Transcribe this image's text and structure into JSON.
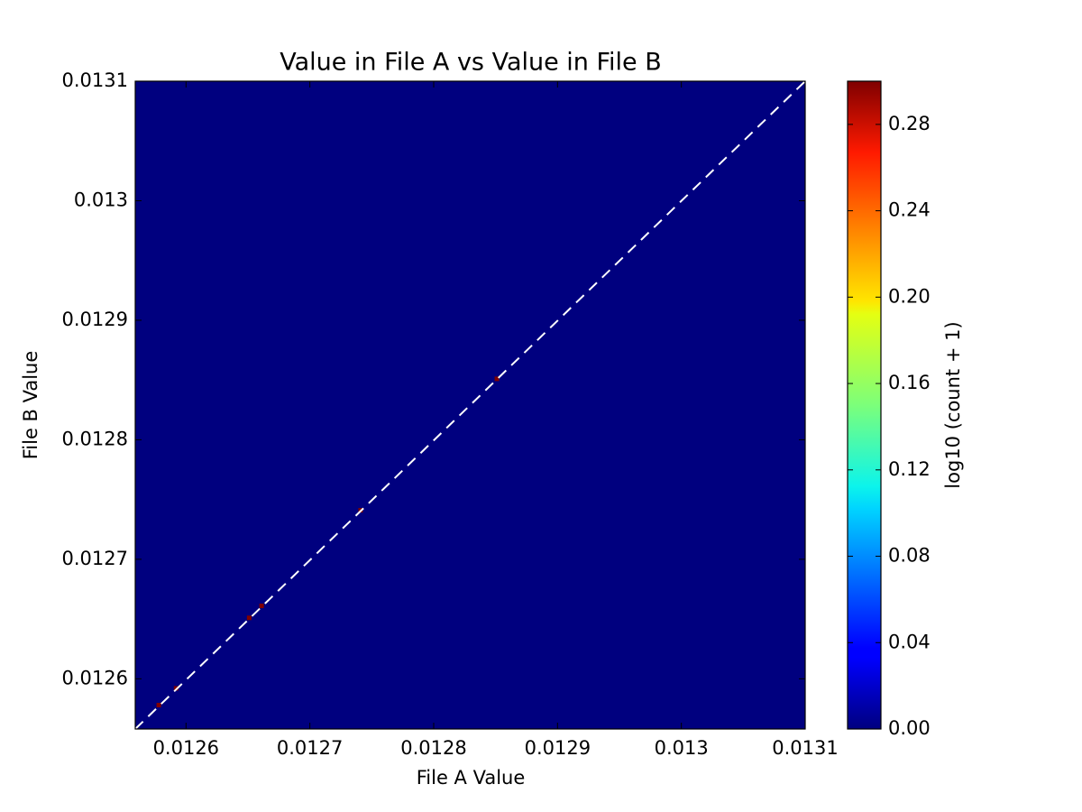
{
  "chart_data": {
    "type": "hist2d",
    "title": "Value in File A vs Value in File B",
    "x_label": "File A Value",
    "y_label": "File B Value",
    "colorbar_label": "log10 (count + 1)",
    "colormap": "jet",
    "x": [
      0.012578,
      0.012592,
      0.012651,
      0.012661,
      0.012741,
      0.012851
    ],
    "y": [
      0.012578,
      0.012592,
      0.012651,
      0.012661,
      0.012741,
      0.012851
    ],
    "values": [
      0.3,
      0.3,
      0.3,
      0.3,
      0.3,
      0.3
    ],
    "xlim": [
      0.012559,
      0.0131
    ],
    "ylim": [
      0.012558,
      0.0131
    ],
    "xticks": [
      0.0126,
      0.0127,
      0.0128,
      0.0129,
      0.013,
      0.0131
    ],
    "yticks": [
      0.0126,
      0.0127,
      0.0128,
      0.0129,
      0.013,
      0.0131
    ],
    "clim": [
      0,
      0.3
    ],
    "cticks": [
      {
        "value": 0,
        "label": "0.00"
      },
      {
        "value": 0.04,
        "label": "0.04"
      },
      {
        "value": 0.08,
        "label": "0.08"
      },
      {
        "value": 0.12,
        "label": "0.12"
      },
      {
        "value": 0.16,
        "label": "0.16"
      },
      {
        "value": 0.2,
        "label": "0.20"
      },
      {
        "value": 0.24,
        "label": "0.24"
      },
      {
        "value": 0.28,
        "label": "0.28"
      }
    ],
    "identity_line": true
  }
}
